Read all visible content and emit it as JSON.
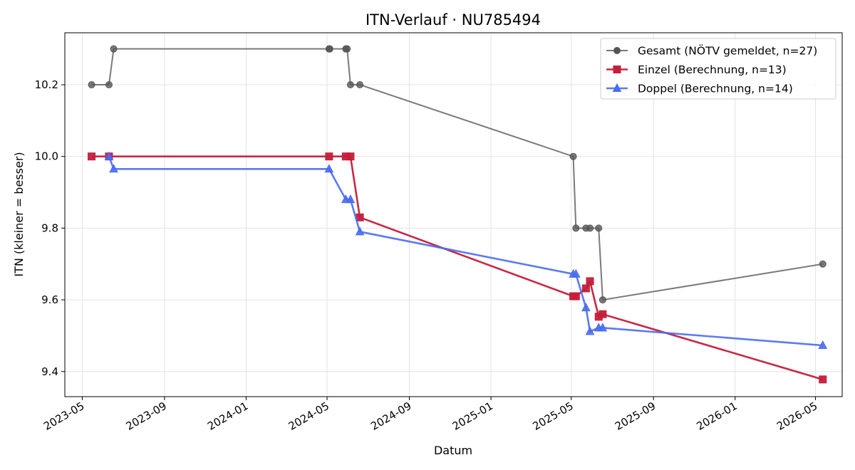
{
  "chart_data": {
    "type": "line",
    "title": "ITN-Verlauf · NU785494",
    "xlabel": "Datum",
    "ylabel": "ITN  (kleiner = besser)",
    "x_axis_type": "date",
    "xlim": [
      "2023-04-05",
      "2026-06-10"
    ],
    "ylim": [
      9.33,
      10.345
    ],
    "x_ticks": [
      "2023-05-01",
      "2023-09-01",
      "2024-01-01",
      "2024-05-01",
      "2024-09-01",
      "2025-01-01",
      "2025-05-01",
      "2025-09-01",
      "2026-01-01",
      "2026-05-01"
    ],
    "x_tick_labels": [
      "2023-05",
      "2023-09",
      "2024-01",
      "2024-05",
      "2024-09",
      "2025-01",
      "2025-05",
      "2025-09",
      "2026-01",
      "2026-05"
    ],
    "y_ticks": [
      9.4,
      9.6,
      9.8,
      10.0,
      10.2
    ],
    "y_tick_labels": [
      "9.4",
      "9.6",
      "9.8",
      "10.0",
      "10.2"
    ],
    "grid": true,
    "legend_position": "top-right",
    "series": [
      {
        "name": "Gesamt (NÖTV gemeldet, n=27)",
        "color": "#555555",
        "marker": "circle",
        "points": [
          [
            "2023-05-15",
            10.2
          ],
          [
            "2023-06-10",
            10.2
          ],
          [
            "2023-06-17",
            10.3
          ],
          [
            "2024-05-04",
            10.3
          ],
          [
            "2024-05-05",
            10.3
          ],
          [
            "2024-05-29",
            10.3
          ],
          [
            "2024-05-31",
            10.3
          ],
          [
            "2024-06-05",
            10.2
          ],
          [
            "2024-06-19",
            10.2
          ],
          [
            "2025-05-04",
            10.0
          ],
          [
            "2025-05-08",
            9.8
          ],
          [
            "2025-05-23",
            9.8
          ],
          [
            "2025-05-29",
            9.8
          ],
          [
            "2025-06-11",
            9.8
          ],
          [
            "2025-06-17",
            9.6
          ],
          [
            "2026-05-12",
            9.7
          ]
        ]
      },
      {
        "name": "Einzel (Berechnung, n=13)",
        "color": "#C41E3A",
        "marker": "square",
        "points": [
          [
            "2023-05-15",
            10.0
          ],
          [
            "2023-06-10",
            10.0
          ],
          [
            "2024-05-04",
            10.0
          ],
          [
            "2024-05-29",
            10.0
          ],
          [
            "2024-06-05",
            10.0
          ],
          [
            "2024-06-19",
            9.83
          ],
          [
            "2025-05-04",
            9.61
          ],
          [
            "2025-05-08",
            9.61
          ],
          [
            "2025-05-23",
            9.632
          ],
          [
            "2025-05-29",
            9.652
          ],
          [
            "2025-06-11",
            9.553
          ],
          [
            "2025-06-17",
            9.56
          ],
          [
            "2026-05-12",
            9.378
          ]
        ]
      },
      {
        "name": "Doppel (Berechnung, n=14)",
        "color": "#4A6CF0",
        "marker": "triangle",
        "points": [
          [
            "2023-06-10",
            10.0
          ],
          [
            "2023-06-17",
            9.965
          ],
          [
            "2024-05-04",
            9.965
          ],
          [
            "2024-05-29",
            9.88
          ],
          [
            "2024-06-05",
            9.88
          ],
          [
            "2024-06-19",
            9.79
          ],
          [
            "2025-05-04",
            9.672
          ],
          [
            "2025-05-08",
            9.672
          ],
          [
            "2025-05-23",
            9.578
          ],
          [
            "2025-05-29",
            9.512
          ],
          [
            "2025-06-11",
            9.522
          ],
          [
            "2025-06-17",
            9.522
          ],
          [
            "2026-05-12",
            9.473
          ]
        ]
      }
    ]
  }
}
